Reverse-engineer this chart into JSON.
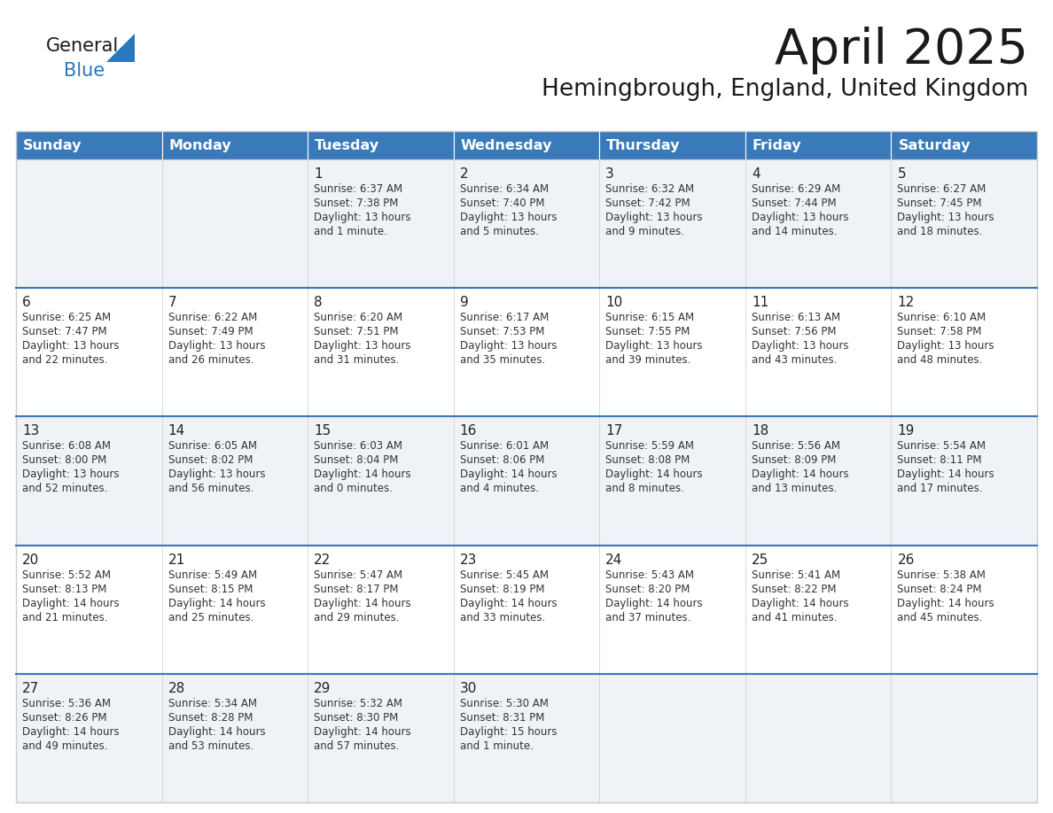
{
  "title": "April 2025",
  "subtitle": "Hemingbrough, England, United Kingdom",
  "header_color": "#3a7aba",
  "header_text_color": "#ffffff",
  "row_bg_light": "#eff3f8",
  "row_bg_white": "#ffffff",
  "row_separator_color": "#3a7aba",
  "cell_border_color": "#cccccc",
  "text_color": "#333333",
  "day_num_color": "#222222",
  "logo_black": "#1a1a1a",
  "logo_blue": "#2878be",
  "triangle_color": "#2878be",
  "days_of_week": [
    "Sunday",
    "Monday",
    "Tuesday",
    "Wednesday",
    "Thursday",
    "Friday",
    "Saturday"
  ],
  "weeks": [
    [
      {
        "day": "",
        "sunrise": "",
        "sunset": "",
        "daylight": ""
      },
      {
        "day": "",
        "sunrise": "",
        "sunset": "",
        "daylight": ""
      },
      {
        "day": "1",
        "sunrise": "Sunrise: 6:37 AM",
        "sunset": "Sunset: 7:38 PM",
        "daylight": "Daylight: 13 hours\nand 1 minute."
      },
      {
        "day": "2",
        "sunrise": "Sunrise: 6:34 AM",
        "sunset": "Sunset: 7:40 PM",
        "daylight": "Daylight: 13 hours\nand 5 minutes."
      },
      {
        "day": "3",
        "sunrise": "Sunrise: 6:32 AM",
        "sunset": "Sunset: 7:42 PM",
        "daylight": "Daylight: 13 hours\nand 9 minutes."
      },
      {
        "day": "4",
        "sunrise": "Sunrise: 6:29 AM",
        "sunset": "Sunset: 7:44 PM",
        "daylight": "Daylight: 13 hours\nand 14 minutes."
      },
      {
        "day": "5",
        "sunrise": "Sunrise: 6:27 AM",
        "sunset": "Sunset: 7:45 PM",
        "daylight": "Daylight: 13 hours\nand 18 minutes."
      }
    ],
    [
      {
        "day": "6",
        "sunrise": "Sunrise: 6:25 AM",
        "sunset": "Sunset: 7:47 PM",
        "daylight": "Daylight: 13 hours\nand 22 minutes."
      },
      {
        "day": "7",
        "sunrise": "Sunrise: 6:22 AM",
        "sunset": "Sunset: 7:49 PM",
        "daylight": "Daylight: 13 hours\nand 26 minutes."
      },
      {
        "day": "8",
        "sunrise": "Sunrise: 6:20 AM",
        "sunset": "Sunset: 7:51 PM",
        "daylight": "Daylight: 13 hours\nand 31 minutes."
      },
      {
        "day": "9",
        "sunrise": "Sunrise: 6:17 AM",
        "sunset": "Sunset: 7:53 PM",
        "daylight": "Daylight: 13 hours\nand 35 minutes."
      },
      {
        "day": "10",
        "sunrise": "Sunrise: 6:15 AM",
        "sunset": "Sunset: 7:55 PM",
        "daylight": "Daylight: 13 hours\nand 39 minutes."
      },
      {
        "day": "11",
        "sunrise": "Sunrise: 6:13 AM",
        "sunset": "Sunset: 7:56 PM",
        "daylight": "Daylight: 13 hours\nand 43 minutes."
      },
      {
        "day": "12",
        "sunrise": "Sunrise: 6:10 AM",
        "sunset": "Sunset: 7:58 PM",
        "daylight": "Daylight: 13 hours\nand 48 minutes."
      }
    ],
    [
      {
        "day": "13",
        "sunrise": "Sunrise: 6:08 AM",
        "sunset": "Sunset: 8:00 PM",
        "daylight": "Daylight: 13 hours\nand 52 minutes."
      },
      {
        "day": "14",
        "sunrise": "Sunrise: 6:05 AM",
        "sunset": "Sunset: 8:02 PM",
        "daylight": "Daylight: 13 hours\nand 56 minutes."
      },
      {
        "day": "15",
        "sunrise": "Sunrise: 6:03 AM",
        "sunset": "Sunset: 8:04 PM",
        "daylight": "Daylight: 14 hours\nand 0 minutes."
      },
      {
        "day": "16",
        "sunrise": "Sunrise: 6:01 AM",
        "sunset": "Sunset: 8:06 PM",
        "daylight": "Daylight: 14 hours\nand 4 minutes."
      },
      {
        "day": "17",
        "sunrise": "Sunrise: 5:59 AM",
        "sunset": "Sunset: 8:08 PM",
        "daylight": "Daylight: 14 hours\nand 8 minutes."
      },
      {
        "day": "18",
        "sunrise": "Sunrise: 5:56 AM",
        "sunset": "Sunset: 8:09 PM",
        "daylight": "Daylight: 14 hours\nand 13 minutes."
      },
      {
        "day": "19",
        "sunrise": "Sunrise: 5:54 AM",
        "sunset": "Sunset: 8:11 PM",
        "daylight": "Daylight: 14 hours\nand 17 minutes."
      }
    ],
    [
      {
        "day": "20",
        "sunrise": "Sunrise: 5:52 AM",
        "sunset": "Sunset: 8:13 PM",
        "daylight": "Daylight: 14 hours\nand 21 minutes."
      },
      {
        "day": "21",
        "sunrise": "Sunrise: 5:49 AM",
        "sunset": "Sunset: 8:15 PM",
        "daylight": "Daylight: 14 hours\nand 25 minutes."
      },
      {
        "day": "22",
        "sunrise": "Sunrise: 5:47 AM",
        "sunset": "Sunset: 8:17 PM",
        "daylight": "Daylight: 14 hours\nand 29 minutes."
      },
      {
        "day": "23",
        "sunrise": "Sunrise: 5:45 AM",
        "sunset": "Sunset: 8:19 PM",
        "daylight": "Daylight: 14 hours\nand 33 minutes."
      },
      {
        "day": "24",
        "sunrise": "Sunrise: 5:43 AM",
        "sunset": "Sunset: 8:20 PM",
        "daylight": "Daylight: 14 hours\nand 37 minutes."
      },
      {
        "day": "25",
        "sunrise": "Sunrise: 5:41 AM",
        "sunset": "Sunset: 8:22 PM",
        "daylight": "Daylight: 14 hours\nand 41 minutes."
      },
      {
        "day": "26",
        "sunrise": "Sunrise: 5:38 AM",
        "sunset": "Sunset: 8:24 PM",
        "daylight": "Daylight: 14 hours\nand 45 minutes."
      }
    ],
    [
      {
        "day": "27",
        "sunrise": "Sunrise: 5:36 AM",
        "sunset": "Sunset: 8:26 PM",
        "daylight": "Daylight: 14 hours\nand 49 minutes."
      },
      {
        "day": "28",
        "sunrise": "Sunrise: 5:34 AM",
        "sunset": "Sunset: 8:28 PM",
        "daylight": "Daylight: 14 hours\nand 53 minutes."
      },
      {
        "day": "29",
        "sunrise": "Sunrise: 5:32 AM",
        "sunset": "Sunset: 8:30 PM",
        "daylight": "Daylight: 14 hours\nand 57 minutes."
      },
      {
        "day": "30",
        "sunrise": "Sunrise: 5:30 AM",
        "sunset": "Sunset: 8:31 PM",
        "daylight": "Daylight: 15 hours\nand 1 minute."
      },
      {
        "day": "",
        "sunrise": "",
        "sunset": "",
        "daylight": ""
      },
      {
        "day": "",
        "sunrise": "",
        "sunset": "",
        "daylight": ""
      },
      {
        "day": "",
        "sunrise": "",
        "sunset": "",
        "daylight": ""
      }
    ]
  ]
}
